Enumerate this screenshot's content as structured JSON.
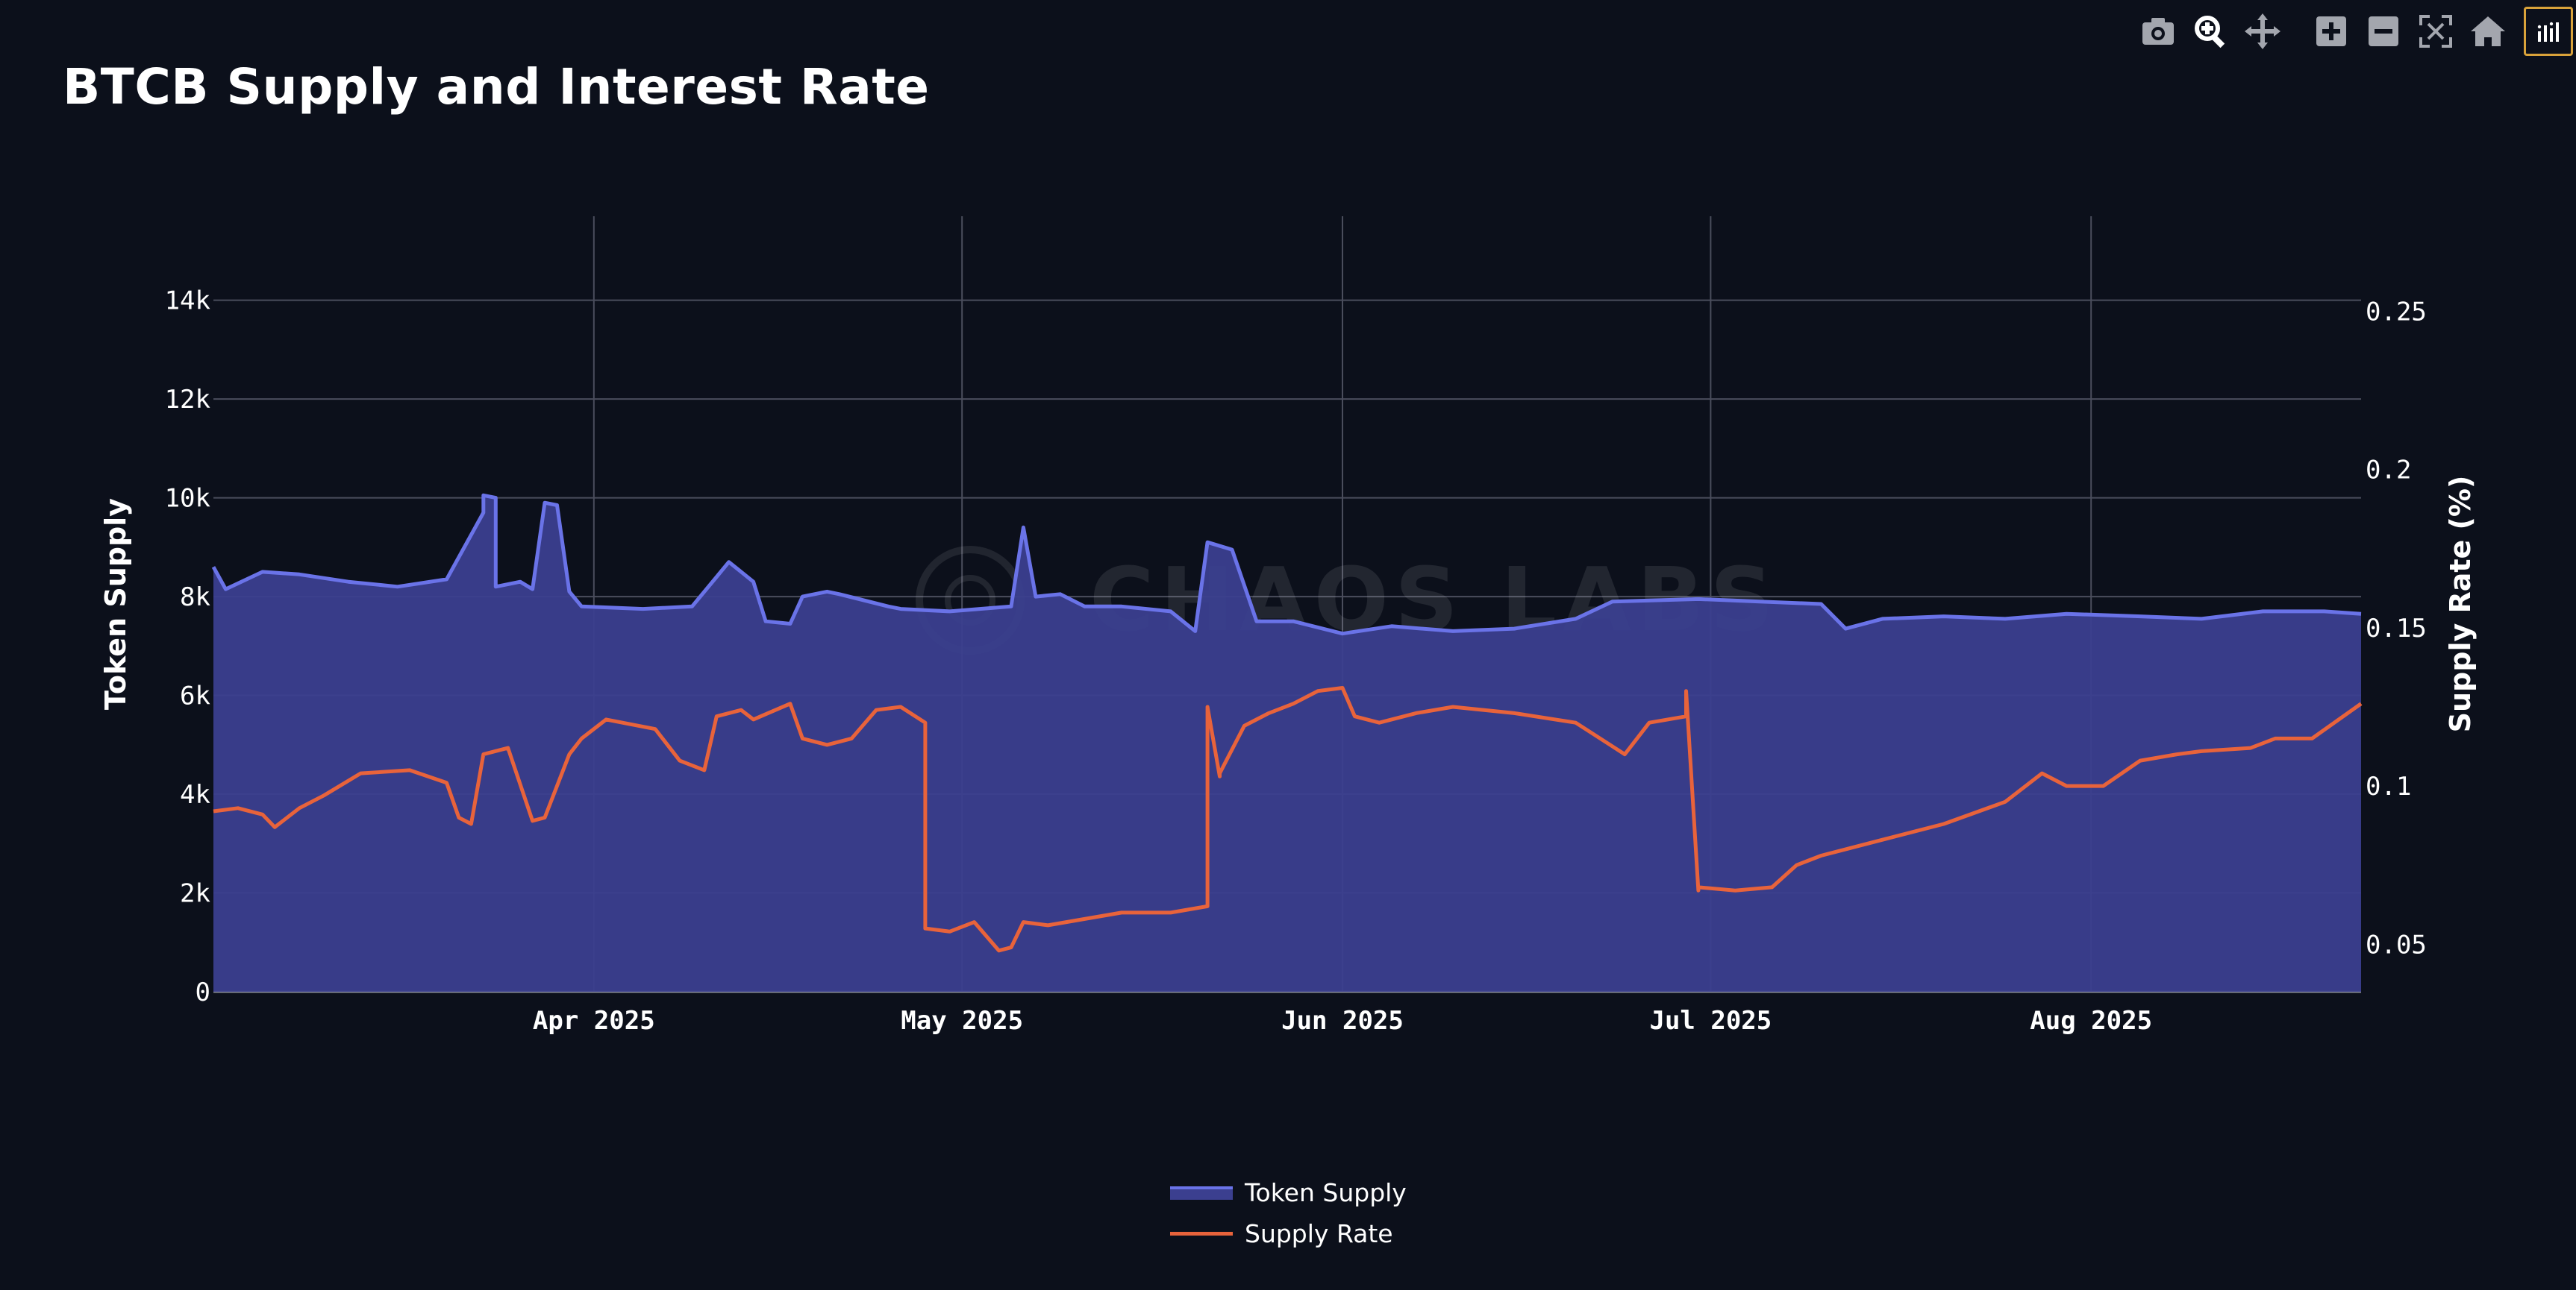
{
  "title": "BTCB Supply and Interest Rate",
  "modebar": {
    "icons": [
      "camera-icon",
      "zoom-icon",
      "pan-icon",
      "zoom-in-icon",
      "zoom-out-icon",
      "autoscale-icon",
      "reset-axes-icon",
      "plotly-logo-icon"
    ]
  },
  "colors": {
    "background": "#0c101b",
    "supply_fill": "#3b3f8f",
    "supply_line": "#6a73e8",
    "rate_line": "#e8633b",
    "grid": "#4a4d5c",
    "active_button": "#d9a23a"
  },
  "chart_data": {
    "type": "area",
    "title": "BTCB Supply and Interest Rate",
    "xlabel": "",
    "ylabel": "Token Supply",
    "y2label": "Supply Rate (%)",
    "x_ticks": [
      "Apr 2025",
      "May 2025",
      "Jun 2025",
      "Jul 2025",
      "Aug 2025"
    ],
    "y_ticks": [
      "0",
      "2k",
      "4k",
      "6k",
      "8k",
      "10k",
      "12k",
      "14k"
    ],
    "y2_ticks": [
      "0.05",
      "0.1",
      "0.15",
      "0.2",
      "0.25"
    ],
    "ylim": [
      0,
      15700
    ],
    "y2lim": [
      0.035,
      0.28
    ],
    "xlim": [
      "2025-03-01",
      "2025-08-23"
    ],
    "grid": true,
    "legend_position": "bottom-center",
    "series": [
      {
        "name": "Token Supply",
        "axis": "y",
        "x": [
          "2025-03-01",
          "2025-03-02",
          "2025-03-05",
          "2025-03-08",
          "2025-03-12",
          "2025-03-16",
          "2025-03-20",
          "2025-03-23",
          "2025-03-23",
          "2025-03-24",
          "2025-03-24",
          "2025-03-26",
          "2025-03-27",
          "2025-03-28",
          "2025-03-29",
          "2025-03-30",
          "2025-03-31",
          "2025-04-05",
          "2025-04-09",
          "2025-04-11",
          "2025-04-12",
          "2025-04-13",
          "2025-04-14",
          "2025-04-15",
          "2025-04-17",
          "2025-04-18",
          "2025-04-20",
          "2025-04-21",
          "2025-04-25",
          "2025-04-26",
          "2025-04-30",
          "2025-05-05",
          "2025-05-06",
          "2025-05-07",
          "2025-05-09",
          "2025-05-11",
          "2025-05-14",
          "2025-05-18",
          "2025-05-20",
          "2025-05-21",
          "2025-05-23",
          "2025-05-25",
          "2025-05-28",
          "2025-06-01",
          "2025-06-05",
          "2025-06-10",
          "2025-06-15",
          "2025-06-20",
          "2025-06-23",
          "2025-06-30",
          "2025-07-05",
          "2025-07-10",
          "2025-07-12",
          "2025-07-15",
          "2025-07-20",
          "2025-07-25",
          "2025-07-30",
          "2025-08-05",
          "2025-08-10",
          "2025-08-15",
          "2025-08-20",
          "2025-08-23"
        ],
        "values": [
          8600,
          8150,
          8500,
          8450,
          8300,
          8200,
          8350,
          9700,
          10050,
          10000,
          8200,
          8300,
          8150,
          9900,
          9850,
          8100,
          7800,
          7750,
          7800,
          8400,
          8700,
          8500,
          8300,
          7500,
          7450,
          8000,
          8100,
          8050,
          7800,
          7750,
          7700,
          7800,
          9400,
          8000,
          8050,
          7800,
          7800,
          7700,
          7300,
          9100,
          8950,
          7500,
          7500,
          7250,
          7400,
          7300,
          7350,
          7550,
          7900,
          7950,
          7900,
          7850,
          7350,
          7550,
          7600,
          7550,
          7650,
          7600,
          7550,
          7700,
          7700,
          7650
        ]
      },
      {
        "name": "Supply Rate",
        "axis": "y2",
        "x": [
          "2025-03-01",
          "2025-03-03",
          "2025-03-05",
          "2025-03-06",
          "2025-03-08",
          "2025-03-10",
          "2025-03-13",
          "2025-03-17",
          "2025-03-20",
          "2025-03-21",
          "2025-03-22",
          "2025-03-23",
          "2025-03-25",
          "2025-03-27",
          "2025-03-28",
          "2025-03-30",
          "2025-03-31",
          "2025-04-02",
          "2025-04-06",
          "2025-04-08",
          "2025-04-10",
          "2025-04-11",
          "2025-04-13",
          "2025-04-14",
          "2025-04-17",
          "2025-04-18",
          "2025-04-20",
          "2025-04-22",
          "2025-04-24",
          "2025-04-26",
          "2025-04-28",
          "2025-04-28",
          "2025-04-30",
          "2025-05-02",
          "2025-05-04",
          "2025-05-05",
          "2025-05-06",
          "2025-05-08",
          "2025-05-11",
          "2025-05-14",
          "2025-05-18",
          "2025-05-21",
          "2025-05-21",
          "2025-05-22",
          "2025-05-22",
          "2025-05-24",
          "2025-05-26",
          "2025-05-28",
          "2025-05-30",
          "2025-06-01",
          "2025-06-02",
          "2025-06-04",
          "2025-06-07",
          "2025-06-10",
          "2025-06-15",
          "2025-06-20",
          "2025-06-24",
          "2025-06-26",
          "2025-06-29",
          "2025-06-29",
          "2025-06-30",
          "2025-06-30",
          "2025-07-03",
          "2025-07-06",
          "2025-07-08",
          "2025-07-10",
          "2025-07-15",
          "2025-07-20",
          "2025-07-25",
          "2025-07-28",
          "2025-07-30",
          "2025-08-02",
          "2025-08-05",
          "2025-08-08",
          "2025-08-10",
          "2025-08-14",
          "2025-08-16",
          "2025-08-19",
          "2025-08-23"
        ],
        "values": [
          0.092,
          0.093,
          0.091,
          0.087,
          0.093,
          0.097,
          0.104,
          0.105,
          0.101,
          0.09,
          0.088,
          0.11,
          0.112,
          0.089,
          0.09,
          0.11,
          0.115,
          0.121,
          0.118,
          0.108,
          0.105,
          0.122,
          0.124,
          0.121,
          0.126,
          0.115,
          0.113,
          0.115,
          0.124,
          0.125,
          0.12,
          0.055,
          0.054,
          0.057,
          0.048,
          0.049,
          0.057,
          0.056,
          0.058,
          0.06,
          0.06,
          0.062,
          0.125,
          0.103,
          0.104,
          0.119,
          0.123,
          0.126,
          0.13,
          0.131,
          0.122,
          0.12,
          0.123,
          0.125,
          0.123,
          0.12,
          0.11,
          0.12,
          0.122,
          0.13,
          0.067,
          0.068,
          0.067,
          0.068,
          0.075,
          0.078,
          0.083,
          0.088,
          0.095,
          0.104,
          0.1,
          0.1,
          0.108,
          0.11,
          0.111,
          0.112,
          0.115,
          0.115,
          0.126
        ]
      }
    ]
  },
  "legend": {
    "items": [
      "Token Supply",
      "Supply Rate"
    ]
  }
}
